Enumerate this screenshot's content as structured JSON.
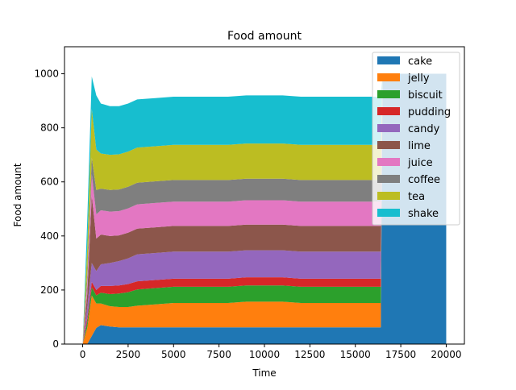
{
  "chart_data": {
    "type": "area",
    "title": "Food amount",
    "xlabel": "Time",
    "ylabel": "Food amount",
    "xlim": [
      -1000,
      21000
    ],
    "ylim": [
      0,
      1100
    ],
    "xticks": [
      0,
      2500,
      5000,
      7500,
      10000,
      12500,
      15000,
      17500,
      20000
    ],
    "xtick_labels": [
      "0",
      "2500",
      "5000",
      "7500",
      "10000",
      "12500",
      "15000",
      "17500",
      "20000"
    ],
    "yticks": [
      0,
      200,
      400,
      600,
      800,
      1000
    ],
    "ytick_labels": [
      "0",
      "200",
      "400",
      "600",
      "800",
      "1000"
    ],
    "grid": false,
    "legend_position": "top-right",
    "x": [
      0,
      250,
      500,
      750,
      1000,
      1500,
      2000,
      2500,
      3000,
      4000,
      5000,
      6000,
      7000,
      8000,
      9000,
      10000,
      11000,
      12000,
      13000,
      14000,
      15000,
      16000,
      16400,
      16500,
      17000,
      18000,
      19000,
      20000
    ],
    "series": [
      {
        "name": "cake",
        "color": "#1f77b4",
        "values": [
          0,
          0,
          30,
          60,
          70,
          65,
          62,
          62,
          62,
          62,
          62,
          62,
          62,
          62,
          62,
          62,
          62,
          62,
          62,
          62,
          62,
          62,
          62,
          1000,
          1000,
          1000,
          1000,
          1000
        ]
      },
      {
        "name": "jelly",
        "color": "#ff7f0e",
        "values": [
          0,
          60,
          150,
          90,
          80,
          75,
          75,
          75,
          80,
          85,
          90,
          90,
          90,
          90,
          95,
          95,
          95,
          90,
          90,
          90,
          90,
          90,
          90,
          0,
          0,
          0,
          0,
          0
        ]
      },
      {
        "name": "biscuit",
        "color": "#2ca02c",
        "values": [
          0,
          20,
          30,
          30,
          40,
          45,
          50,
          55,
          60,
          60,
          60,
          60,
          60,
          60,
          60,
          60,
          60,
          60,
          60,
          60,
          60,
          60,
          60,
          0,
          0,
          0,
          0,
          0
        ]
      },
      {
        "name": "pudding",
        "color": "#d62728",
        "values": [
          0,
          15,
          20,
          20,
          25,
          30,
          30,
          30,
          30,
          30,
          30,
          30,
          30,
          30,
          30,
          30,
          30,
          30,
          30,
          30,
          30,
          30,
          30,
          0,
          0,
          0,
          0,
          0
        ]
      },
      {
        "name": "candy",
        "color": "#9467bd",
        "values": [
          0,
          40,
          70,
          70,
          80,
          85,
          90,
          95,
          100,
          100,
          100,
          100,
          100,
          100,
          100,
          100,
          100,
          100,
          100,
          100,
          100,
          100,
          100,
          0,
          0,
          0,
          0,
          0
        ]
      },
      {
        "name": "lime",
        "color": "#8c564b",
        "values": [
          0,
          50,
          250,
          120,
          110,
          100,
          95,
          95,
          95,
          95,
          95,
          95,
          95,
          95,
          95,
          95,
          95,
          95,
          95,
          95,
          95,
          95,
          95,
          0,
          0,
          0,
          0,
          0
        ]
      },
      {
        "name": "juice",
        "color": "#e377c2",
        "values": [
          0,
          40,
          80,
          90,
          90,
          90,
          90,
          90,
          90,
          90,
          90,
          90,
          90,
          90,
          90,
          90,
          90,
          90,
          90,
          90,
          90,
          90,
          90,
          0,
          0,
          0,
          0,
          0
        ]
      },
      {
        "name": "coffee",
        "color": "#7f7f7f",
        "values": [
          0,
          30,
          60,
          90,
          80,
          80,
          80,
          80,
          80,
          80,
          80,
          80,
          80,
          80,
          80,
          80,
          80,
          80,
          80,
          80,
          80,
          80,
          80,
          0,
          0,
          0,
          0,
          0
        ]
      },
      {
        "name": "tea",
        "color": "#bcbd22",
        "values": [
          0,
          100,
          180,
          150,
          130,
          130,
          130,
          130,
          130,
          130,
          130,
          130,
          130,
          130,
          130,
          130,
          130,
          130,
          130,
          130,
          130,
          130,
          130,
          0,
          0,
          0,
          0,
          0
        ]
      },
      {
        "name": "shake",
        "color": "#17becf",
        "values": [
          0,
          100,
          120,
          200,
          185,
          180,
          178,
          178,
          178,
          178,
          178,
          178,
          178,
          178,
          178,
          178,
          178,
          178,
          178,
          178,
          178,
          178,
          178,
          0,
          0,
          0,
          0,
          0
        ]
      }
    ]
  }
}
